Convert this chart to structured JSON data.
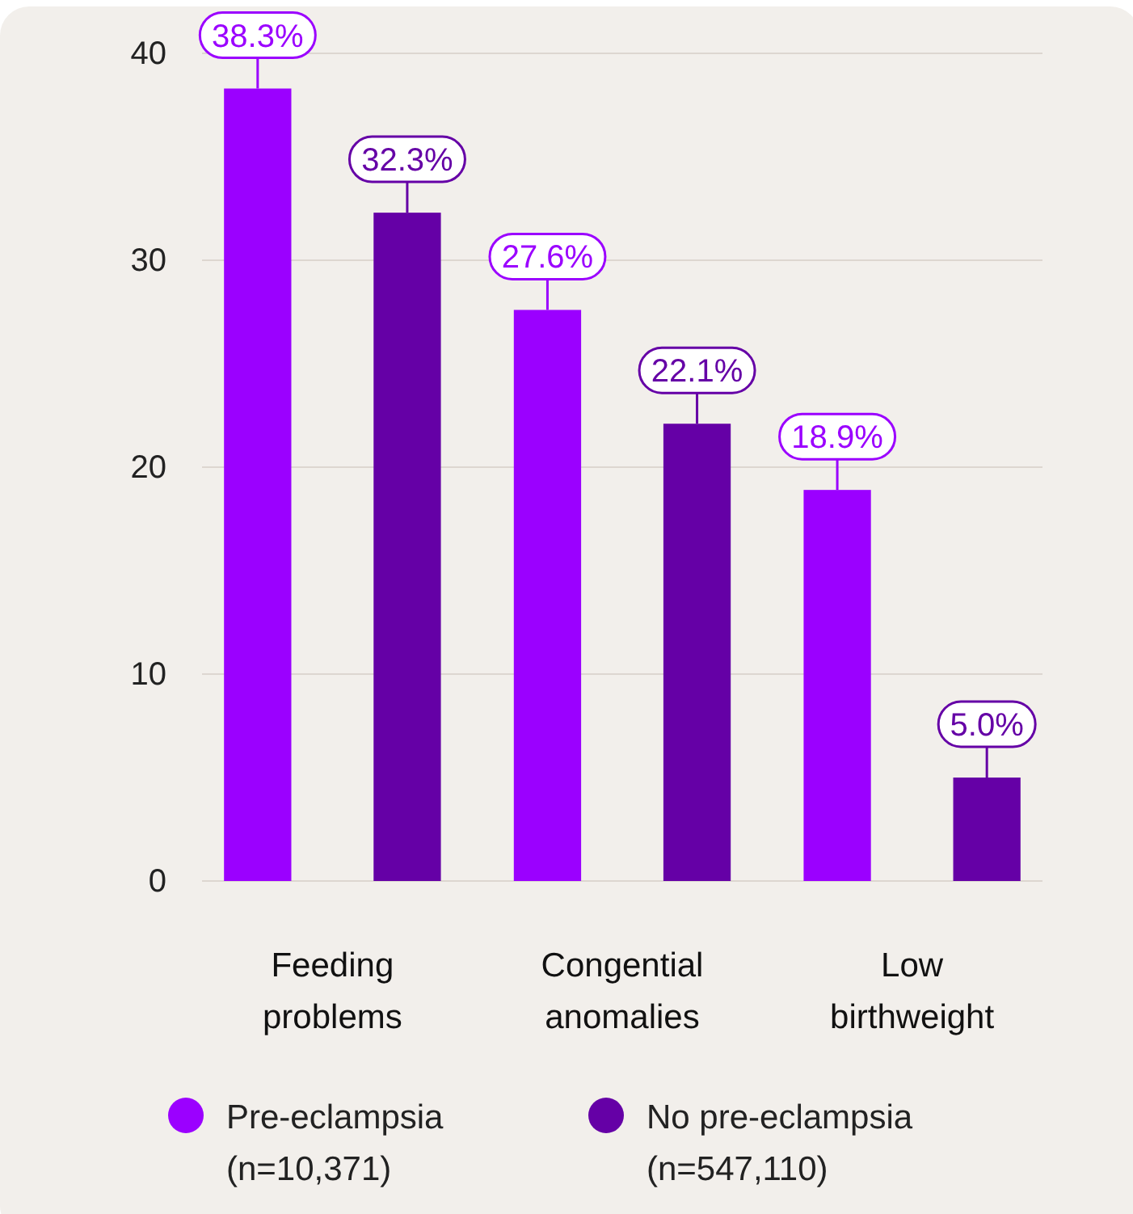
{
  "chart_data": {
    "type": "bar",
    "categories": [
      "Feeding\nproblems",
      "Congential\nanomalies",
      "Low\nbirthweight"
    ],
    "series": [
      {
        "name": "Pre-eclampsia\n(n=10,371)",
        "color": "#9b00ff",
        "values": [
          38.3,
          27.6,
          18.9
        ]
      },
      {
        "name": "No pre-eclampsia\n(n=547,110)",
        "color": "#6500a6",
        "values": [
          32.3,
          22.1,
          5.0
        ]
      }
    ],
    "value_labels": [
      [
        "38.3%",
        "27.6%",
        "18.9%"
      ],
      [
        "32.3%",
        "22.1%",
        "5.0%"
      ]
    ],
    "ylim": [
      0,
      40
    ],
    "yticks": [
      0,
      10,
      20,
      30,
      40
    ],
    "grid": "y",
    "legend": "bottom"
  }
}
